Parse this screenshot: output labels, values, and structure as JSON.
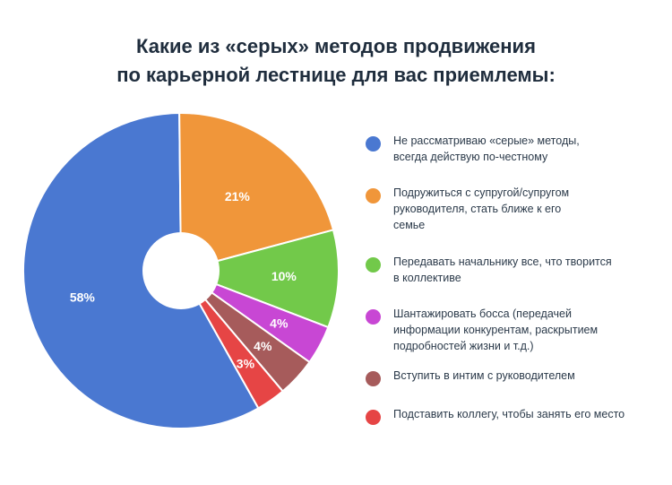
{
  "title": {
    "line1": "Какие из «серых» методов продвижения",
    "line2": "по карьерной лестнице для вас приемлемы:"
  },
  "chart_data": {
    "type": "pie",
    "title": "Какие из «серых» методов продвижения по карьерной лестнице для вас приемлемы:",
    "donut_hole": true,
    "slices": [
      {
        "label": "Не рассматриваю «серые» методы, всегда действую по-честному",
        "value": 58,
        "display": "58%",
        "color": "#4a78d1"
      },
      {
        "label": "Подружиться с супругой/супругом руководителя, стать ближе к его семье",
        "value": 21,
        "display": "21%",
        "color": "#f0963a"
      },
      {
        "label": "Передавать начальнику все, что творится в коллективе",
        "value": 10,
        "display": "10%",
        "color": "#72c94a"
      },
      {
        "label": "Шантажировать босса (передачей информации конкурентам, раскрытием подробностей жизни и т.д.)",
        "value": 4,
        "display": "4%",
        "color": "#c847d4"
      },
      {
        "label": "Вступить в интим с руководителем",
        "value": 4,
        "display": "4%",
        "color": "#a65b5b"
      },
      {
        "label": "Подставить коллегу, чтобы занять его место",
        "value": 3,
        "display": "3%",
        "color": "#e64545"
      }
    ],
    "legend_position": "right"
  },
  "legend": [
    {
      "lines": [
        "Не рассматриваю «серые» методы,",
        "всегда действую по-честному"
      ],
      "color": "#4a78d1"
    },
    {
      "lines": [
        "Подружиться с супругой/супругом",
        "руководителя, стать ближе к его",
        "семье"
      ],
      "color": "#f0963a"
    },
    {
      "lines": [
        "Передавать начальнику все, что творится",
        "в коллективе"
      ],
      "color": "#72c94a"
    },
    {
      "lines": [
        "Шантажировать босса (передачей",
        "информации конкурентам, раскрытием",
        "подробностей жизни и т.д.)"
      ],
      "color": "#c847d4"
    },
    {
      "lines": [
        "Вступить в интим с руководителем"
      ],
      "color": "#a65b5b"
    },
    {
      "lines": [
        "Подставить коллегу, чтобы занять его место"
      ],
      "color": "#e64545"
    }
  ]
}
